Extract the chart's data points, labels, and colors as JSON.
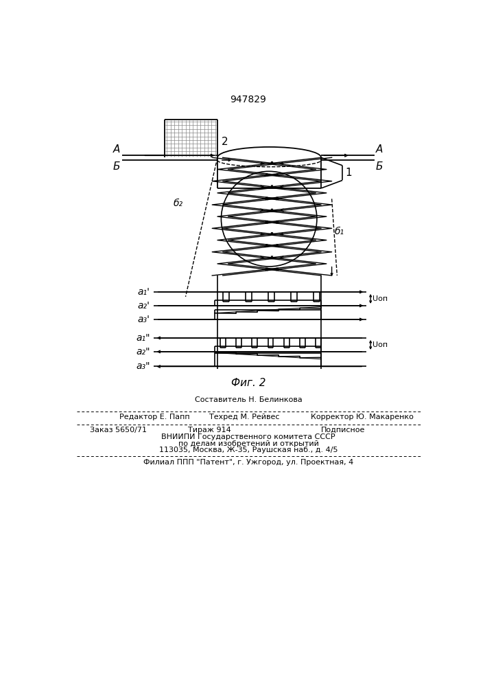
{
  "patent_number": "947829",
  "fig_label": "Фиг. 2",
  "background_color": "#ffffff",
  "line_color": "#000000",
  "составитель": "Составитель Н. Белинкова",
  "редактор": "Редактор Е. Папп",
  "техред": "Техред М. Рейвес",
  "корректор": "Корректор Ю. Макаренко",
  "заказ": "Заказ 5650/71",
  "тираж": "Тираж 914",
  "подписное": "Подписное",
  "вниипи": "ВНИИПИ Государственного комитета СССР",
  "по_делам": "по делам изобретений и открытий",
  "адрес": "113035, Москва, Ж-35, Раушская наб., д. 4/5",
  "филиал": "Филиал ППП \"Патент\", г. Ужгород, ул. Проектная, 4"
}
